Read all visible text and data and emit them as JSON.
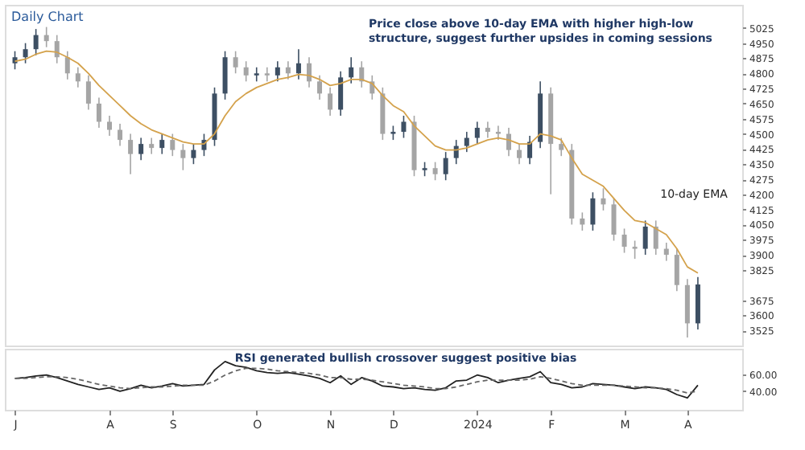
{
  "chart_data": [
    {
      "type": "candlestick",
      "title": "Daily Chart",
      "categories": [
        null,
        null,
        null,
        null,
        null,
        null,
        null,
        null,
        null,
        null,
        null,
        null,
        null,
        null,
        null,
        null,
        null,
        null,
        null,
        null,
        null,
        null,
        null,
        null,
        null,
        null,
        null,
        null,
        null,
        null,
        null,
        null,
        null,
        null,
        null,
        null,
        null,
        null,
        null,
        null,
        null,
        null,
        null,
        null,
        null,
        null,
        null,
        null,
        null,
        null,
        null,
        null,
        null,
        null,
        null,
        null,
        null,
        null,
        null,
        null,
        null,
        null,
        null,
        null,
        null,
        null
      ],
      "ohlc": [
        [
          4850,
          4910,
          4820,
          4880
        ],
        [
          4880,
          4950,
          4850,
          4920
        ],
        [
          4920,
          5020,
          4890,
          4990
        ],
        [
          4990,
          5030,
          4930,
          4960
        ],
        [
          4960,
          4990,
          4850,
          4880
        ],
        [
          4880,
          4910,
          4770,
          4800
        ],
        [
          4800,
          4830,
          4730,
          4760
        ],
        [
          4760,
          4790,
          4620,
          4650
        ],
        [
          4650,
          4680,
          4530,
          4560
        ],
        [
          4560,
          4590,
          4490,
          4520
        ],
        [
          4520,
          4550,
          4440,
          4470
        ],
        [
          4470,
          4500,
          4300,
          4400
        ],
        [
          4400,
          4480,
          4370,
          4450
        ],
        [
          4450,
          4480,
          4400,
          4430
        ],
        [
          4430,
          4500,
          4400,
          4470
        ],
        [
          4470,
          4500,
          4390,
          4420
        ],
        [
          4420,
          4450,
          4320,
          4380
        ],
        [
          4380,
          4450,
          4350,
          4420
        ],
        [
          4420,
          4500,
          4390,
          4470
        ],
        [
          4470,
          4730,
          4440,
          4700
        ],
        [
          4700,
          4910,
          4670,
          4880
        ],
        [
          4880,
          4910,
          4800,
          4830
        ],
        [
          4830,
          4860,
          4760,
          4790
        ],
        [
          4790,
          4830,
          4760,
          4800
        ],
        [
          4800,
          4830,
          4760,
          4790
        ],
        [
          4790,
          4860,
          4760,
          4830
        ],
        [
          4830,
          4860,
          4770,
          4800
        ],
        [
          4800,
          4920,
          4770,
          4850
        ],
        [
          4850,
          4880,
          4730,
          4760
        ],
        [
          4760,
          4790,
          4670,
          4700
        ],
        [
          4700,
          4730,
          4590,
          4620
        ],
        [
          4620,
          4810,
          4590,
          4780
        ],
        [
          4780,
          4880,
          4750,
          4830
        ],
        [
          4830,
          4860,
          4730,
          4760
        ],
        [
          4760,
          4790,
          4670,
          4700
        ],
        [
          4700,
          4730,
          4470,
          4500
        ],
        [
          4500,
          4540,
          4470,
          4510
        ],
        [
          4510,
          4590,
          4480,
          4560
        ],
        [
          4560,
          4590,
          4290,
          4320
        ],
        [
          4320,
          4360,
          4290,
          4330
        ],
        [
          4330,
          4360,
          4270,
          4300
        ],
        [
          4300,
          4410,
          4270,
          4380
        ],
        [
          4380,
          4470,
          4350,
          4440
        ],
        [
          4440,
          4510,
          4410,
          4480
        ],
        [
          4480,
          4560,
          4450,
          4530
        ],
        [
          4530,
          4560,
          4480,
          4510
        ],
        [
          4510,
          4540,
          4470,
          4500
        ],
        [
          4500,
          4530,
          4390,
          4420
        ],
        [
          4420,
          4450,
          4350,
          4380
        ],
        [
          4380,
          4490,
          4350,
          4460
        ],
        [
          4460,
          4760,
          4430,
          4700
        ],
        [
          4700,
          4730,
          4200,
          4450
        ],
        [
          4450,
          4480,
          4390,
          4420
        ],
        [
          4420,
          4450,
          4050,
          4080
        ],
        [
          4080,
          4110,
          4020,
          4050
        ],
        [
          4050,
          4210,
          4020,
          4180
        ],
        [
          4180,
          4230,
          4120,
          4150
        ],
        [
          4150,
          4180,
          3970,
          4000
        ],
        [
          4000,
          4030,
          3910,
          3940
        ],
        [
          3940,
          3970,
          3880,
          3930
        ],
        [
          3930,
          4070,
          3900,
          4040
        ],
        [
          4040,
          4070,
          3900,
          3930
        ],
        [
          3930,
          3960,
          3870,
          3900
        ],
        [
          3900,
          3930,
          3720,
          3750
        ],
        [
          3750,
          3780,
          3490,
          3560
        ],
        [
          3560,
          3790,
          3530,
          3753
        ]
      ],
      "colors": [
        "#3d4f63",
        "#3d4f63",
        "#3d4f63",
        "#a5a5a5",
        "#a5a5a5",
        "#a5a5a5",
        "#a5a5a5",
        "#a5a5a5",
        "#a5a5a5",
        "#a5a5a5",
        "#a5a5a5",
        "#a5a5a5",
        "#3d4f63",
        "#a5a5a5",
        "#3d4f63",
        "#a5a5a5",
        "#a5a5a5",
        "#3d4f63",
        "#3d4f63",
        "#3d4f63",
        "#3d4f63",
        "#a5a5a5",
        "#a5a5a5",
        "#3d4f63",
        "#a5a5a5",
        "#3d4f63",
        "#a5a5a5",
        "#3d4f63",
        "#a5a5a5",
        "#a5a5a5",
        "#a5a5a5",
        "#3d4f63",
        "#3d4f63",
        "#a5a5a5",
        "#a5a5a5",
        "#a5a5a5",
        "#3d4f63",
        "#3d4f63",
        "#a5a5a5",
        "#3d4f63",
        "#a5a5a5",
        "#3d4f63",
        "#3d4f63",
        "#3d4f63",
        "#3d4f63",
        "#a5a5a5",
        "#a5a5a5",
        "#a5a5a5",
        "#a5a5a5",
        "#3d4f63",
        "#3d4f63",
        "#a5a5a5",
        "#a5a5a5",
        "#a5a5a5",
        "#a5a5a5",
        "#3d4f63",
        "#a5a5a5",
        "#a5a5a5",
        "#a5a5a5",
        "#a5a5a5",
        "#3d4f63",
        "#a5a5a5",
        "#a5a5a5",
        "#a5a5a5",
        "#a5a5a5",
        "#3d4f63"
      ],
      "series": [
        {
          "type": "line",
          "color": "#d4a24c",
          "values": [
            4860,
            4870,
            4895,
            4910,
            4905,
            4880,
            4850,
            4800,
            4740,
            4690,
            4640,
            4590,
            4550,
            4520,
            4500,
            4480,
            4460,
            4450,
            4450,
            4500,
            4590,
            4660,
            4700,
            4730,
            4750,
            4770,
            4780,
            4795,
            4790,
            4770,
            4740,
            4750,
            4770,
            4770,
            4750,
            4690,
            4640,
            4610,
            4540,
            4490,
            4440,
            4420,
            4420,
            4430,
            4450,
            4470,
            4480,
            4470,
            4450,
            4450,
            4500,
            4490,
            4470,
            4380,
            4300,
            4270,
            4240,
            4180,
            4120,
            4070,
            4060,
            4030,
            4000,
            3930,
            3840,
            3810
          ]
        }
      ],
      "ylim": [
        3450,
        5140
      ],
      "yticks": [
        5025,
        4950,
        4875,
        4800,
        4725,
        4650,
        4575,
        4500,
        4425,
        4350,
        4275,
        4200,
        4125,
        4050,
        3975,
        3900,
        3825,
        3675,
        3600,
        3525
      ],
      "tick_labels": "y",
      "annotations": [
        "Price close above 10-day EMA with higher high-low structure, suggest further upsides in coming sessions",
        "10-day EMA"
      ]
    },
    {
      "type": "line",
      "categories": [
        "J",
        null,
        null,
        null,
        null,
        null,
        null,
        null,
        null,
        "A",
        null,
        null,
        null,
        null,
        null,
        "S",
        null,
        null,
        null,
        null,
        null,
        null,
        null,
        "O",
        null,
        null,
        null,
        null,
        null,
        null,
        "N",
        null,
        null,
        null,
        null,
        null,
        "D",
        null,
        null,
        null,
        null,
        null,
        null,
        null,
        "2024",
        null,
        null,
        null,
        null,
        null,
        null,
        "F",
        null,
        null,
        null,
        null,
        null,
        null,
        "M",
        null,
        null,
        null,
        null,
        null,
        "A",
        null
      ],
      "series": [
        {
          "color": "#222222",
          "line_style": "solid",
          "values": [
            55,
            56,
            58,
            59,
            56,
            52,
            48,
            45,
            42,
            44,
            40,
            43,
            47,
            44,
            46,
            49,
            46,
            47,
            48,
            65,
            75,
            70,
            68,
            64,
            62,
            61,
            62,
            60,
            58,
            55,
            50,
            58,
            48,
            56,
            52,
            46,
            45,
            43,
            44,
            42,
            41,
            44,
            52,
            53,
            59,
            56,
            50,
            53,
            55,
            57,
            63,
            50,
            48,
            44,
            45,
            49,
            48,
            47,
            45,
            43,
            45,
            44,
            42,
            36,
            32,
            47
          ]
        },
        {
          "color": "#666666",
          "line_style": "dashed",
          "values": [
            55,
            55,
            56,
            57,
            57,
            56,
            54,
            51,
            48,
            46,
            44,
            43,
            44,
            45,
            45,
            46,
            47,
            47,
            47,
            52,
            59,
            64,
            67,
            67,
            66,
            64,
            63,
            62,
            61,
            59,
            56,
            56,
            54,
            54,
            53,
            51,
            49,
            47,
            46,
            45,
            43,
            43,
            45,
            48,
            51,
            53,
            53,
            53,
            53,
            54,
            57,
            55,
            52,
            49,
            47,
            47,
            47,
            47,
            46,
            45,
            44,
            44,
            43,
            41,
            38,
            40
          ]
        }
      ],
      "ylim": [
        18,
        90
      ],
      "yticks": [
        {
          "value": 60,
          "label": "60.00"
        },
        {
          "value": 40,
          "label": "40.00"
        }
      ],
      "annotations": [
        "RSI generated bullish crossover suggest positive bias"
      ]
    }
  ]
}
